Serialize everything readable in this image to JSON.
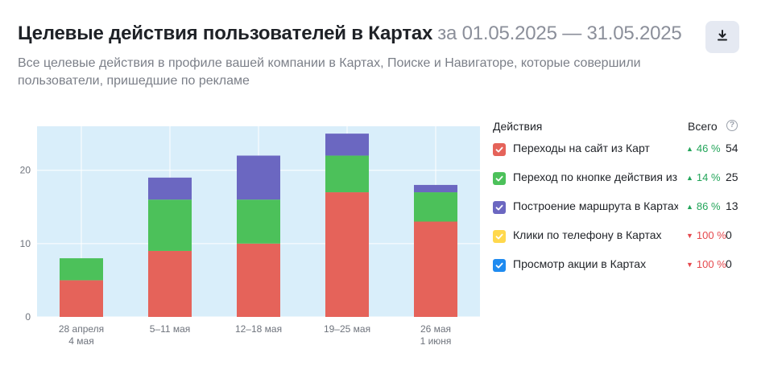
{
  "header": {
    "title": "Целевые действия пользователей в Картах",
    "period": "за 01.05.2025 — 31.05.2025",
    "subtitle": "Все целевые действия в профиле вашей компании в Картах, Поиске и Навигаторе, которые совершили пользователи, пришедшие по рекламе",
    "download_icon": "download-icon"
  },
  "legend": {
    "title": "Действия",
    "total_label": "Всего",
    "help_icon": "question-icon",
    "help_glyph": "?",
    "items": [
      {
        "label": "Переходы на сайт из Карт",
        "color": "#e5635a",
        "checked": true,
        "change": "46 %",
        "direction": "up",
        "total": "54"
      },
      {
        "label": "Переход по кнопке действия из Карт",
        "color": "#4cc15a",
        "checked": true,
        "change": "14 %",
        "direction": "up",
        "total": "25"
      },
      {
        "label": "Построение маршрута в Картах",
        "color": "#6b67c1",
        "checked": true,
        "change": "86 %",
        "direction": "up",
        "total": "13"
      },
      {
        "label": "Клики по телефону в Картах",
        "color": "#ffd84d",
        "checked": true,
        "change": "100 %",
        "direction": "down",
        "total": "0"
      },
      {
        "label": "Просмотр акции в Картах",
        "color": "#1f8bf0",
        "checked": true,
        "change": "100 %",
        "direction": "down",
        "total": "0"
      }
    ]
  },
  "chart_data": {
    "type": "bar",
    "stacked": true,
    "categories": [
      [
        "28 апреля",
        "4 мая"
      ],
      [
        "5–11 мая"
      ],
      [
        "12–18 мая"
      ],
      [
        "19–25 мая"
      ],
      [
        "26 мая",
        "1 июня"
      ]
    ],
    "series": [
      {
        "name": "Переходы на сайт из Карт",
        "color": "#e5635a",
        "values": [
          5,
          9,
          10,
          17,
          13
        ]
      },
      {
        "name": "Переход по кнопке действия из Карт",
        "color": "#4cc15a",
        "values": [
          3,
          7,
          6,
          5,
          4
        ]
      },
      {
        "name": "Построение маршрута в Картах",
        "color": "#6b67c1",
        "values": [
          0,
          3,
          6,
          3,
          1
        ]
      }
    ],
    "ylim": [
      0,
      26
    ],
    "yticks": [
      0,
      10,
      20
    ],
    "plot_background": "#d9eefa",
    "grid": true
  }
}
